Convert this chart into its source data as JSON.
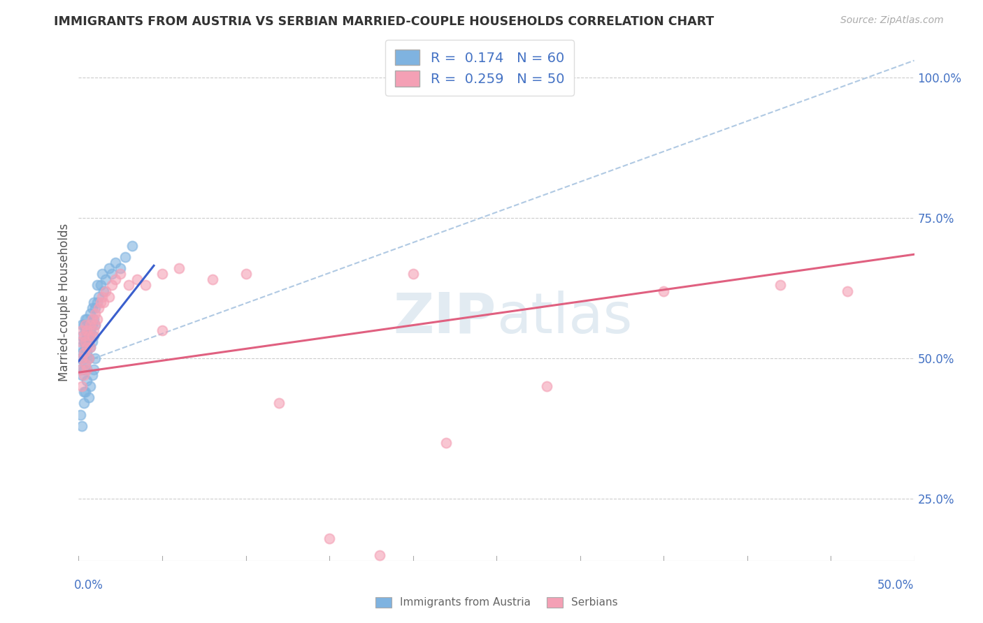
{
  "title": "IMMIGRANTS FROM AUSTRIA VS SERBIAN MARRIED-COUPLE HOUSEHOLDS CORRELATION CHART",
  "source": "Source: ZipAtlas.com",
  "ylabel": "Married-couple Households",
  "legend_austria_r": "R =  0.174",
  "legend_austria_n": "N = 60",
  "legend_serbian_r": "R =  0.259",
  "legend_serbian_n": "N = 50",
  "legend_label1": "Immigrants from Austria",
  "legend_label2": "Serbians",
  "austria_color": "#7fb3e0",
  "serbian_color": "#f4a0b5",
  "austria_line_color": "#3a5fcd",
  "serbian_line_color": "#e06080",
  "dashed_line_color": "#a8c4e0",
  "text_color": "#4472c4",
  "background_color": "#ffffff",
  "xlim": [
    0.0,
    0.5
  ],
  "ylim": [
    0.14,
    1.06
  ],
  "austria_trend_x": [
    0.0,
    0.045
  ],
  "austria_trend_y": [
    0.495,
    0.665
  ],
  "serbian_trend_x": [
    0.0,
    0.5
  ],
  "serbian_trend_y": [
    0.475,
    0.685
  ],
  "dashed_trend_x": [
    0.0,
    0.5
  ],
  "dashed_trend_y": [
    0.49,
    1.03
  ],
  "ytick_vals": [
    0.25,
    0.5,
    0.75,
    1.0
  ],
  "ytick_labels": [
    "25.0%",
    "50.0%",
    "75.0%",
    "100.0%"
  ],
  "austria_pts_x": [
    0.001,
    0.001,
    0.001,
    0.002,
    0.002,
    0.002,
    0.002,
    0.003,
    0.003,
    0.003,
    0.003,
    0.003,
    0.004,
    0.004,
    0.004,
    0.004,
    0.004,
    0.005,
    0.005,
    0.005,
    0.005,
    0.005,
    0.006,
    0.006,
    0.006,
    0.006,
    0.007,
    0.007,
    0.007,
    0.008,
    0.008,
    0.008,
    0.009,
    0.009,
    0.009,
    0.01,
    0.01,
    0.011,
    0.011,
    0.012,
    0.013,
    0.014,
    0.015,
    0.016,
    0.018,
    0.02,
    0.022,
    0.025,
    0.028,
    0.032,
    0.001,
    0.002,
    0.003,
    0.004,
    0.005,
    0.006,
    0.007,
    0.008,
    0.009,
    0.01
  ],
  "austria_pts_y": [
    0.52,
    0.5,
    0.48,
    0.54,
    0.51,
    0.47,
    0.56,
    0.53,
    0.5,
    0.56,
    0.48,
    0.44,
    0.52,
    0.55,
    0.49,
    0.53,
    0.57,
    0.51,
    0.54,
    0.57,
    0.48,
    0.52,
    0.53,
    0.56,
    0.5,
    0.54,
    0.55,
    0.58,
    0.52,
    0.56,
    0.53,
    0.59,
    0.54,
    0.57,
    0.6,
    0.56,
    0.59,
    0.6,
    0.63,
    0.61,
    0.63,
    0.65,
    0.62,
    0.64,
    0.66,
    0.65,
    0.67,
    0.66,
    0.68,
    0.7,
    0.4,
    0.38,
    0.42,
    0.44,
    0.46,
    0.43,
    0.45,
    0.47,
    0.48,
    0.5
  ],
  "serbia_pts_x": [
    0.001,
    0.001,
    0.002,
    0.002,
    0.002,
    0.003,
    0.003,
    0.003,
    0.004,
    0.004,
    0.004,
    0.005,
    0.005,
    0.005,
    0.006,
    0.006,
    0.007,
    0.007,
    0.008,
    0.008,
    0.009,
    0.01,
    0.01,
    0.011,
    0.012,
    0.013,
    0.014,
    0.015,
    0.016,
    0.018,
    0.02,
    0.022,
    0.025,
    0.03,
    0.035,
    0.04,
    0.05,
    0.06,
    0.08,
    0.1,
    0.12,
    0.15,
    0.18,
    0.22,
    0.28,
    0.35,
    0.42,
    0.46,
    0.05,
    0.2
  ],
  "serbia_pts_y": [
    0.53,
    0.48,
    0.55,
    0.5,
    0.45,
    0.54,
    0.51,
    0.47,
    0.53,
    0.56,
    0.49,
    0.52,
    0.55,
    0.48,
    0.54,
    0.5,
    0.56,
    0.52,
    0.54,
    0.57,
    0.55,
    0.56,
    0.58,
    0.57,
    0.59,
    0.6,
    0.61,
    0.6,
    0.62,
    0.61,
    0.63,
    0.64,
    0.65,
    0.63,
    0.64,
    0.63,
    0.65,
    0.66,
    0.64,
    0.65,
    0.42,
    0.18,
    0.15,
    0.35,
    0.45,
    0.62,
    0.63,
    0.62,
    0.55,
    0.65
  ]
}
